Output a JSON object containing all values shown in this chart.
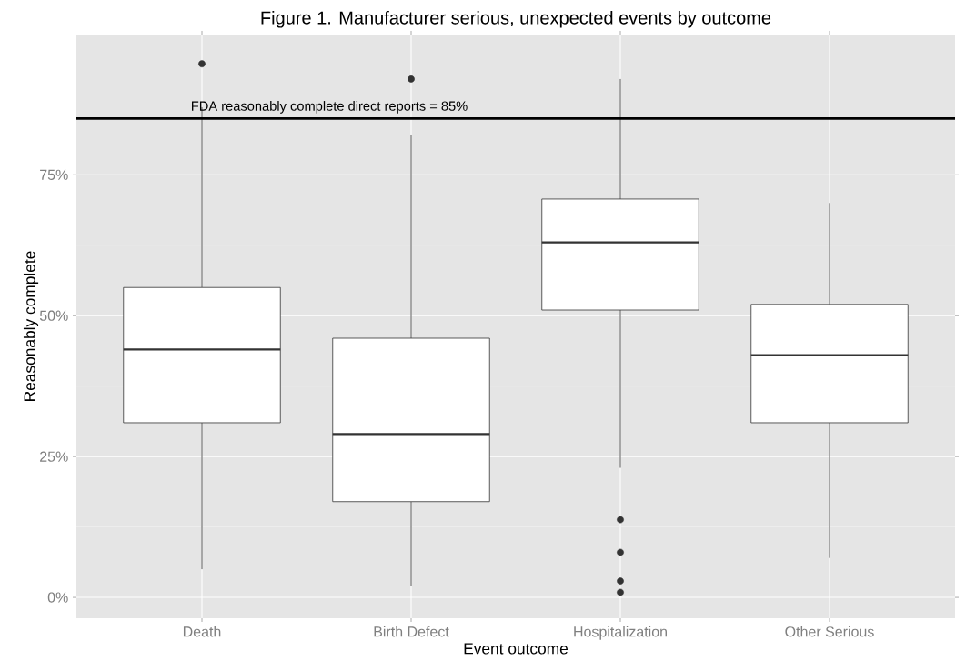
{
  "chart_data": {
    "type": "box",
    "title": "Figure 1. Manufacturer serious, unexpected events by outcome",
    "xlabel": "Event outcome",
    "ylabel": "Reasonably complete",
    "categories": [
      "Death",
      "Birth Defect",
      "Hospitalization",
      "Other Serious"
    ],
    "boxes": [
      {
        "low": 5,
        "q1": 31,
        "median": 44,
        "q3": 55,
        "high": 87,
        "outliers": [
          94.7
        ]
      },
      {
        "low": 2,
        "q1": 17,
        "median": 29,
        "q3": 46,
        "high": 82,
        "outliers": [
          92
        ]
      },
      {
        "low": 23,
        "q1": 51,
        "median": 63,
        "q3": 70.7,
        "high": 92,
        "outliers": [
          13.8,
          8,
          2.9,
          0.9
        ]
      },
      {
        "low": 7,
        "q1": 31,
        "median": 43,
        "q3": 52,
        "high": 70
      }
    ],
    "ylim": [
      -3.7,
      99.9
    ],
    "yticks": [
      {
        "value": 0,
        "label": "0%"
      },
      {
        "value": 25,
        "label": "25%"
      },
      {
        "value": 50,
        "label": "50%"
      },
      {
        "value": 75,
        "label": "75%"
      }
    ],
    "grid": true,
    "ref_lines": [
      {
        "axis": "y",
        "value": 85,
        "label": "FDA reasonably complete direct reports = 85%",
        "color": "#000000"
      }
    ]
  }
}
